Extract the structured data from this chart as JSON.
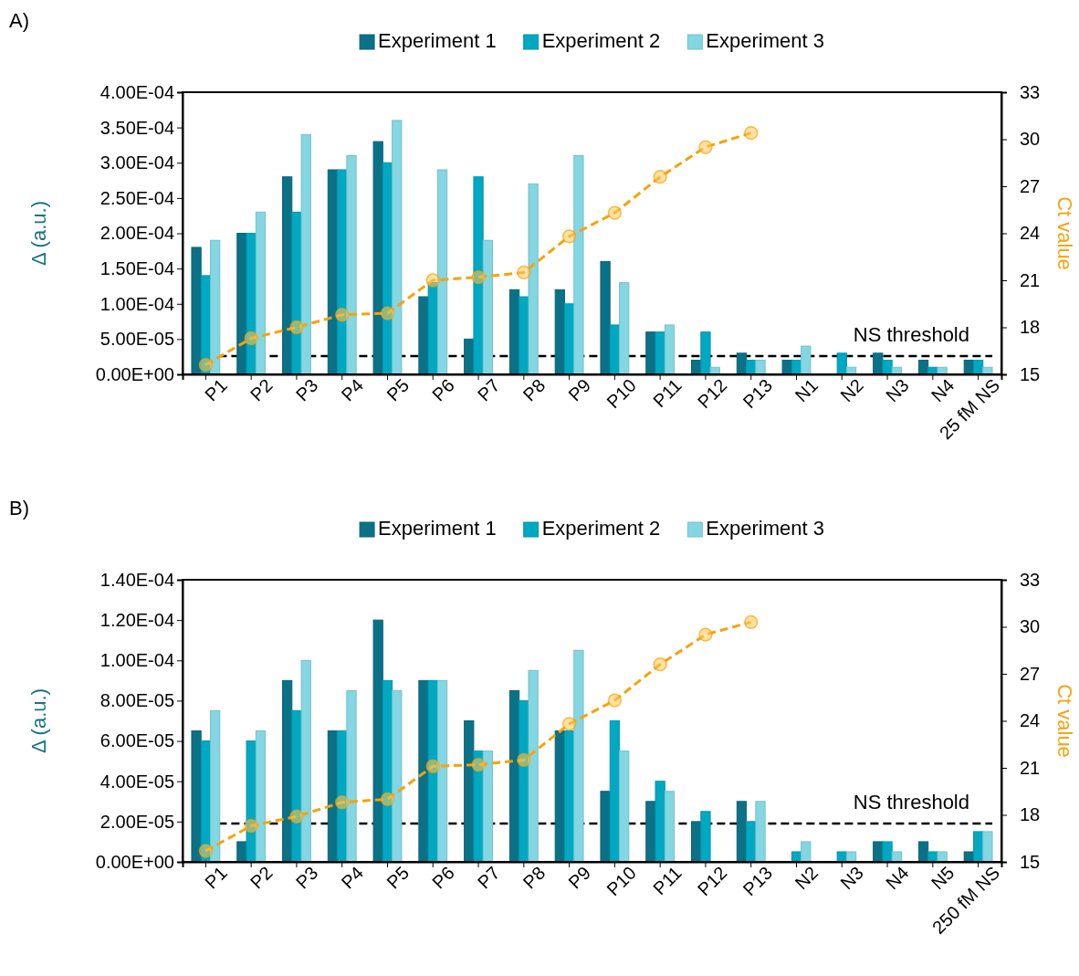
{
  "chart_data": [
    {
      "type": "bar",
      "title": "A)",
      "ylabel": "Δ (a.u.)",
      "y2label": "Ct value",
      "legend": "top",
      "marker": "circle",
      "line_style": "dashed",
      "categories": [
        "P1",
        "P2",
        "P3",
        "P4",
        "P5",
        "P6",
        "P7",
        "P8",
        "P9",
        "P10",
        "P11",
        "P12",
        "P13",
        "N1",
        "N2",
        "N3",
        "N4",
        "25 fM NS"
      ],
      "series": [
        {
          "name": "Experiment 1",
          "color": "#0b7187",
          "values": [
            0.00018,
            0.0002,
            0.00028,
            0.00029,
            0.00033,
            0.00011,
            5e-05,
            0.00012,
            0.00012,
            0.00016,
            6e-05,
            2e-05,
            3e-05,
            2e-05,
            0,
            3e-05,
            2e-05,
            2e-05
          ]
        },
        {
          "name": "Experiment 2",
          "color": "#00a8c2",
          "values": [
            0.00014,
            0.0002,
            0.00023,
            0.00029,
            0.0003,
            0.00013,
            0.00028,
            0.00011,
            0.0001,
            7e-05,
            6e-05,
            6e-05,
            2e-05,
            2e-05,
            3e-05,
            2e-05,
            1e-05,
            2e-05
          ]
        },
        {
          "name": "Experiment 3",
          "color": "#84d6e2",
          "values": [
            0.00019,
            0.00023,
            0.00034,
            0.00031,
            0.00036,
            0.00029,
            0.00019,
            0.00027,
            0.00031,
            0.00013,
            7e-05,
            1e-05,
            2e-05,
            4e-05,
            1e-05,
            1e-05,
            1e-05,
            1e-05
          ]
        },
        {
          "type": "line",
          "axis": "y2",
          "color": "#f7a20a",
          "values": [
            15.6,
            17.3,
            18.0,
            18.8,
            18.9,
            21.0,
            21.2,
            21.5,
            23.8,
            25.3,
            27.6,
            29.5,
            30.4,
            null,
            null,
            null,
            null,
            null
          ]
        }
      ],
      "ylim": [
        0,
        0.0004
      ],
      "yticks": [
        {
          "value": 0,
          "label": "0.00E+00"
        },
        {
          "value": 5e-05,
          "label": "5.00E-05"
        },
        {
          "value": 0.0001,
          "label": "1.00E-04"
        },
        {
          "value": 0.00015,
          "label": "1.50E-04"
        },
        {
          "value": 0.0002,
          "label": "2.00E-04"
        },
        {
          "value": 0.00025,
          "label": "2.50E-04"
        },
        {
          "value": 0.0003,
          "label": "3.00E-04"
        },
        {
          "value": 0.00035,
          "label": "3.50E-04"
        },
        {
          "value": 0.0004,
          "label": "4.00E-04"
        }
      ],
      "y2lim": [
        15,
        33
      ],
      "y2ticks": [
        15,
        18,
        21,
        24,
        27,
        30,
        33
      ],
      "ref_lines": [
        {
          "axis": "y",
          "value": 2.6e-05,
          "label": "NS threshold",
          "color": "#000000",
          "line_style": "dashed"
        }
      ]
    },
    {
      "type": "bar",
      "title": "B)",
      "ylabel": "Δ (a.u.)",
      "y2label": "Ct value",
      "legend": "top",
      "marker": "circle",
      "line_style": "dashed",
      "categories": [
        "P1",
        "P2",
        "P3",
        "P4",
        "P5",
        "P6",
        "P7",
        "P8",
        "P9",
        "P10",
        "P11",
        "P12",
        "P13",
        "N2",
        "N3",
        "N4",
        "N5",
        "250 fM NS"
      ],
      "series": [
        {
          "name": "Experiment 1",
          "color": "#0b7187",
          "values": [
            6.5e-05,
            1e-05,
            9e-05,
            6.5e-05,
            0.00012,
            9e-05,
            7e-05,
            8.5e-05,
            6.5e-05,
            3.5e-05,
            3e-05,
            2e-05,
            3e-05,
            0,
            0,
            1e-05,
            1e-05,
            5e-06
          ]
        },
        {
          "name": "Experiment 2",
          "color": "#00a8c2",
          "values": [
            6e-05,
            6e-05,
            7.5e-05,
            6.5e-05,
            9e-05,
            9e-05,
            5.5e-05,
            8e-05,
            6.5e-05,
            7e-05,
            4e-05,
            2.5e-05,
            2e-05,
            5e-06,
            5e-06,
            1e-05,
            5e-06,
            1.5e-05
          ]
        },
        {
          "name": "Experiment 3",
          "color": "#84d6e2",
          "values": [
            7.5e-05,
            6.5e-05,
            0.0001,
            8.5e-05,
            8.5e-05,
            9e-05,
            5.5e-05,
            9.5e-05,
            0.000105,
            5.5e-05,
            3.5e-05,
            0,
            3e-05,
            1e-05,
            5e-06,
            5e-06,
            5e-06,
            1.5e-05
          ]
        },
        {
          "type": "line",
          "axis": "y2",
          "color": "#f7a20a",
          "values": [
            15.7,
            17.3,
            17.9,
            18.8,
            19.0,
            21.1,
            21.2,
            21.5,
            23.8,
            25.3,
            27.6,
            29.5,
            30.3,
            null,
            null,
            null,
            null,
            null
          ]
        }
      ],
      "ylim": [
        0,
        0.00014
      ],
      "yticks": [
        {
          "value": 0,
          "label": "0.00E+00"
        },
        {
          "value": 2e-05,
          "label": "2.00E-05"
        },
        {
          "value": 4e-05,
          "label": "4.00E-05"
        },
        {
          "value": 6e-05,
          "label": "6.00E-05"
        },
        {
          "value": 8e-05,
          "label": "8.00E-05"
        },
        {
          "value": 0.0001,
          "label": "1.00E-04"
        },
        {
          "value": 0.00012,
          "label": "1.20E-04"
        },
        {
          "value": 0.00014,
          "label": "1.40E-04"
        }
      ],
      "y2lim": [
        15,
        33
      ],
      "y2ticks": [
        15,
        18,
        21,
        24,
        27,
        30,
        33
      ],
      "ref_lines": [
        {
          "axis": "y",
          "value": 1.9e-05,
          "label": "NS threshold",
          "color": "#000000",
          "line_style": "dashed"
        }
      ]
    }
  ]
}
